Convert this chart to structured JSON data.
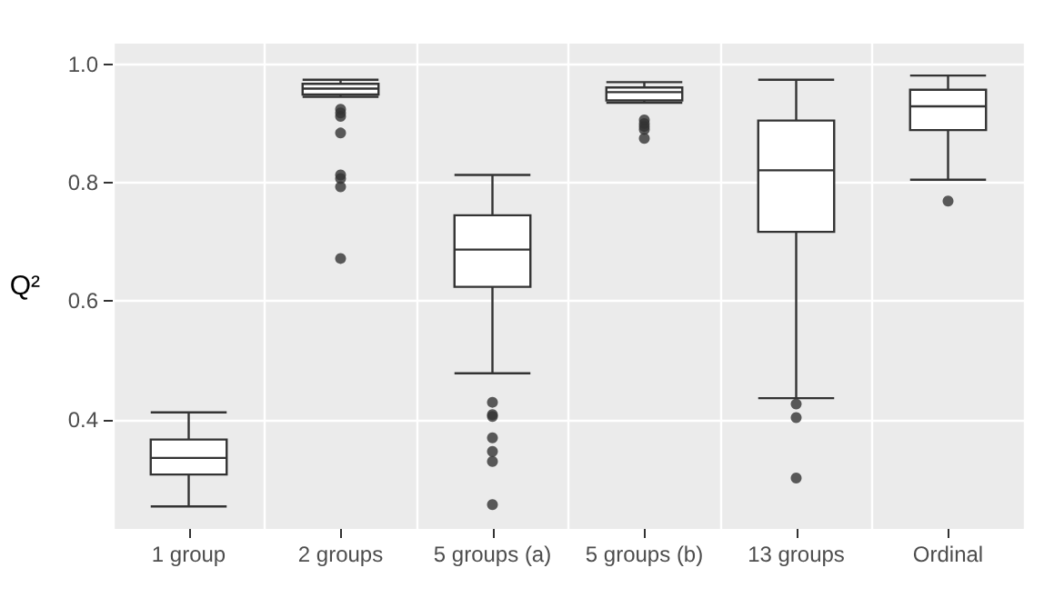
{
  "chart_data": {
    "type": "box",
    "ylabel": "Q²",
    "categories": [
      "1 group",
      "2 groups",
      "5 groups (a)",
      "5 groups (b)",
      "13 groups",
      "Ordinal"
    ],
    "boxes": [
      {
        "low": 0.253,
        "q1": 0.307,
        "median": 0.335,
        "q3": 0.366,
        "high": 0.412
      },
      {
        "low": 0.945,
        "q1": 0.949,
        "median": 0.959,
        "q3": 0.967,
        "high": 0.974,
        "outliers": [
          0.924,
          0.918,
          0.912,
          0.884,
          0.813,
          0.807,
          0.793,
          0.672
        ]
      },
      {
        "low": 0.478,
        "q1": 0.624,
        "median": 0.687,
        "q3": 0.745,
        "high": 0.813,
        "outliers": [
          0.429,
          0.408,
          0.405,
          0.369,
          0.346,
          0.329,
          0.256
        ]
      },
      {
        "low": 0.935,
        "q1": 0.939,
        "median": 0.953,
        "q3": 0.961,
        "high": 0.97,
        "outliers": [
          0.906,
          0.9,
          0.895,
          0.89,
          0.875
        ]
      },
      {
        "low": 0.436,
        "q1": 0.717,
        "median": 0.821,
        "q3": 0.905,
        "high": 0.974,
        "outliers": [
          0.426,
          0.403,
          0.301
        ]
      },
      {
        "low": 0.805,
        "q1": 0.889,
        "median": 0.929,
        "q3": 0.957,
        "high": 0.981,
        "outliers": [
          0.769
        ]
      }
    ],
    "color": "#333333",
    "ylim": [
      0.215,
      1.035
    ],
    "yticks": [
      0.4,
      0.6,
      0.8,
      {
        "value": 1,
        "label": "1.0"
      }
    ],
    "grid": true
  }
}
